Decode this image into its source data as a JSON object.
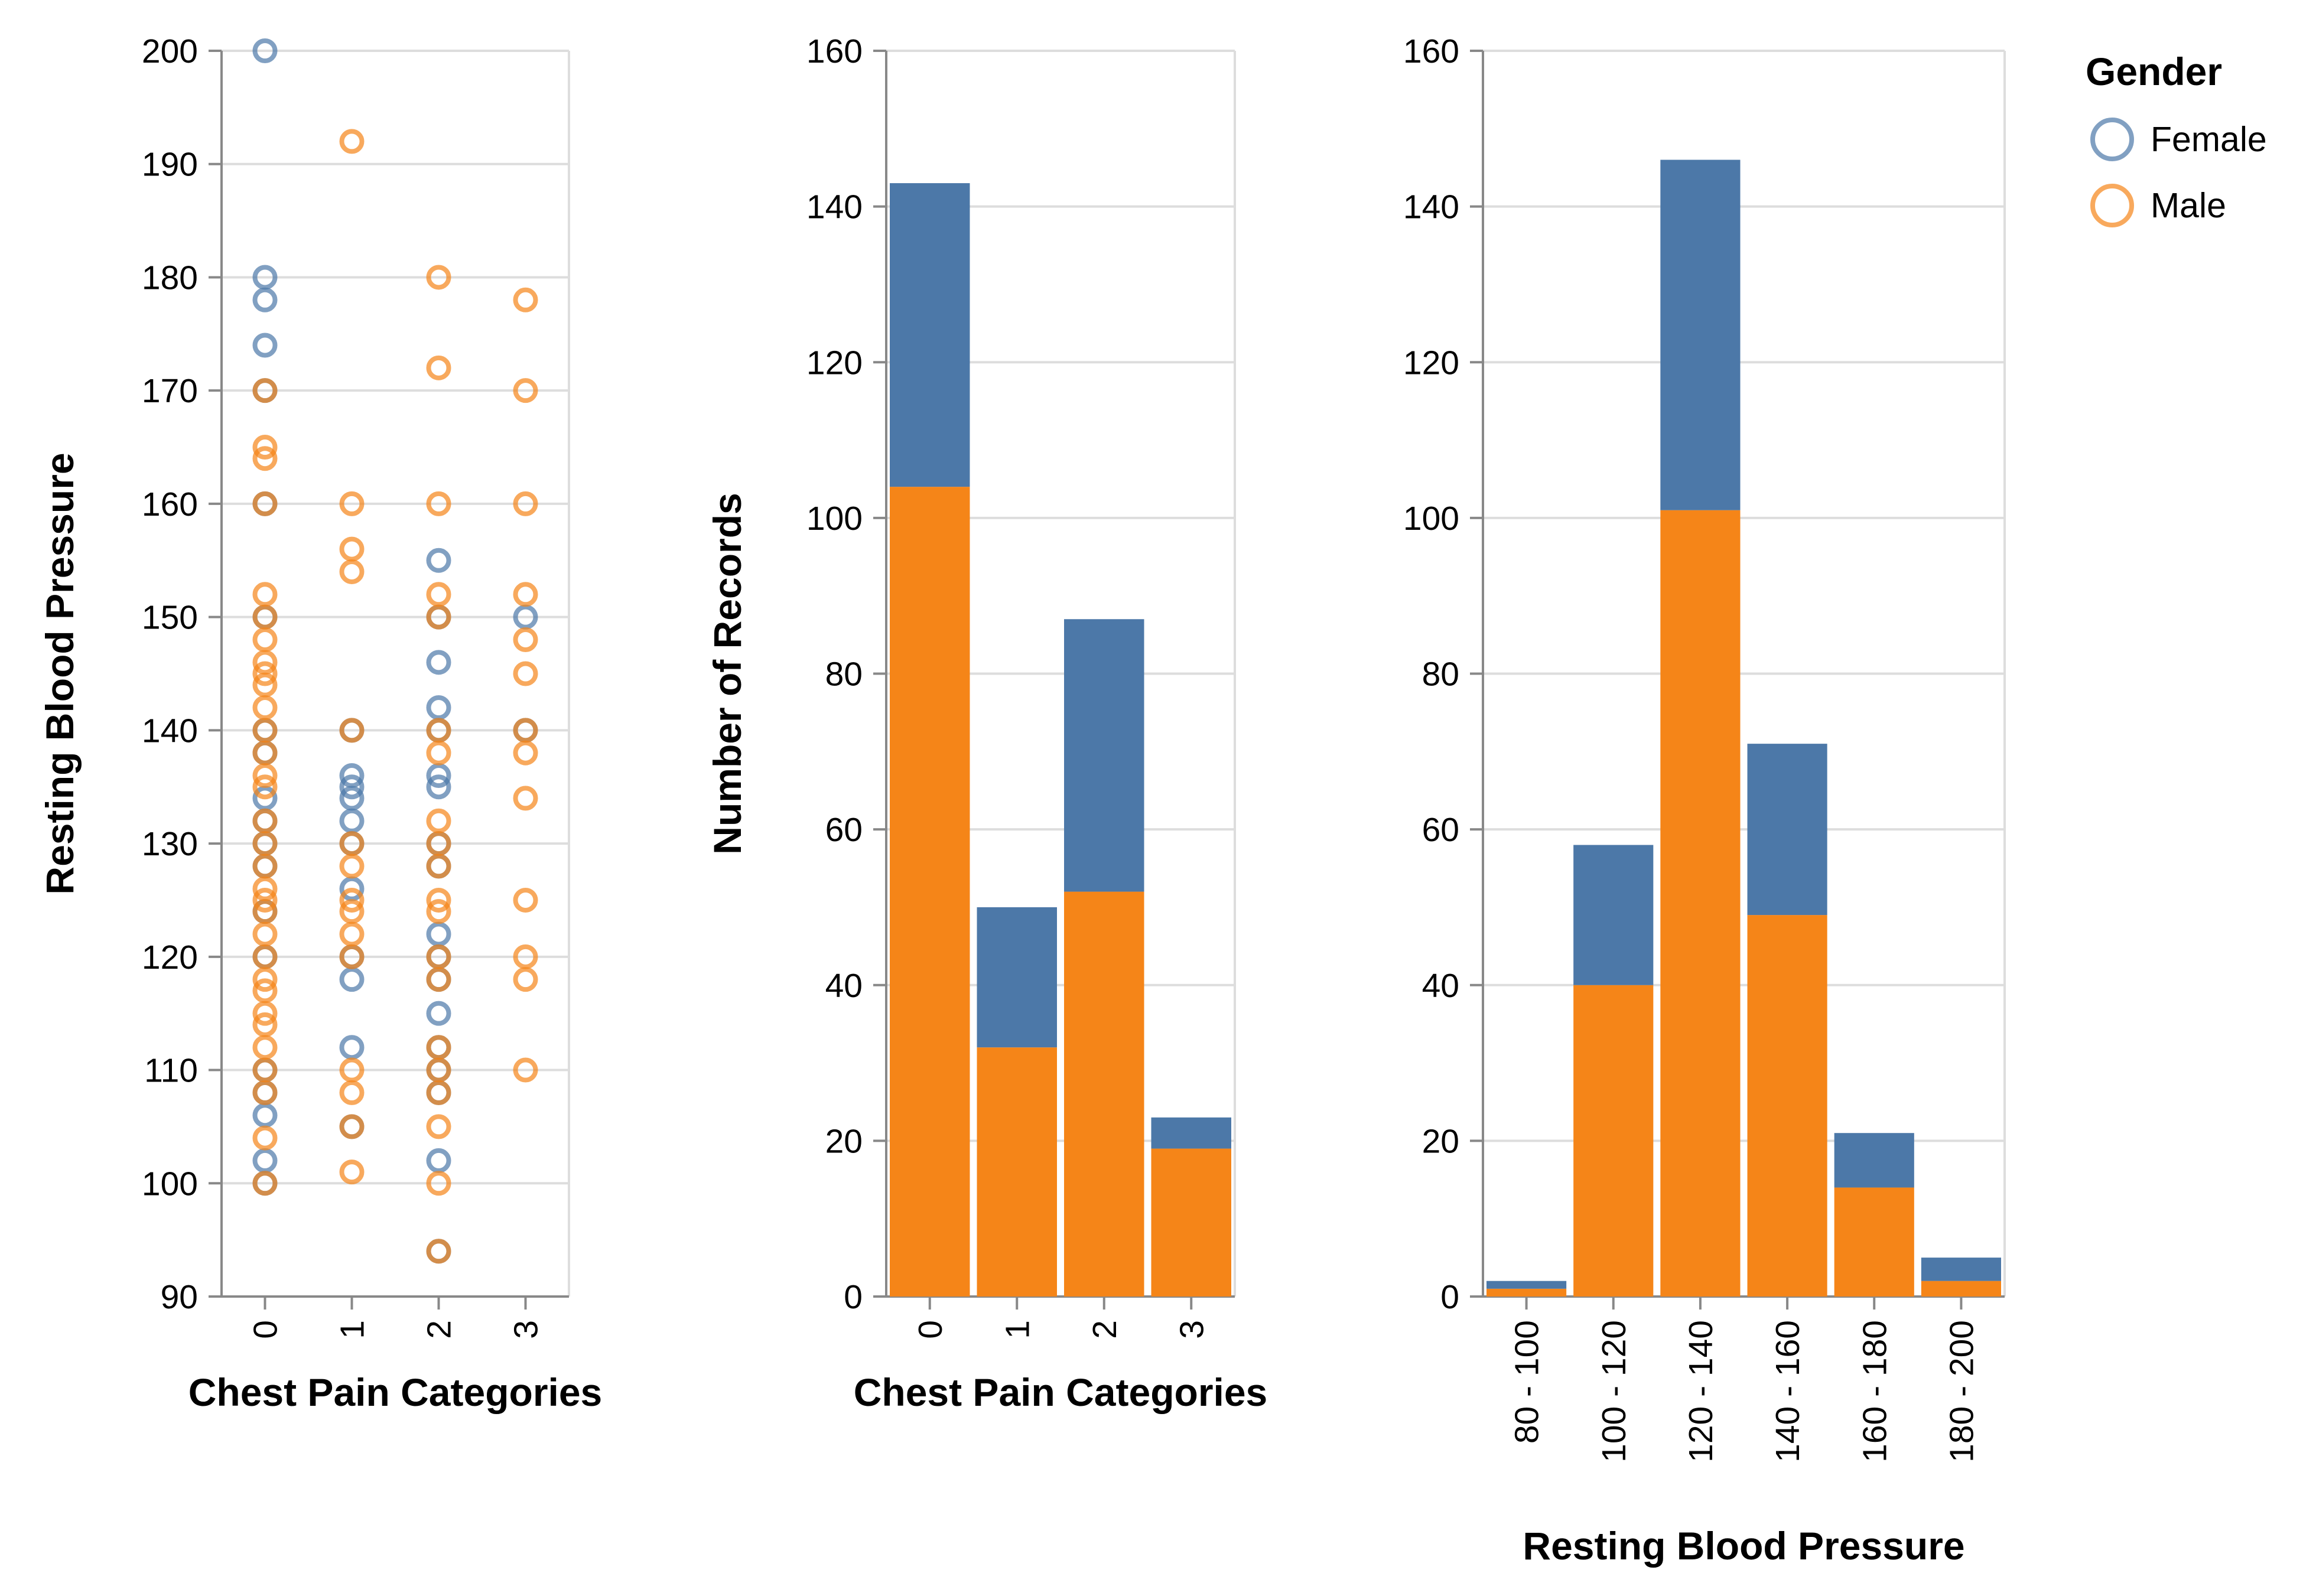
{
  "legend": {
    "title": "Gender",
    "items": [
      {
        "label": "Female",
        "color": "#4c78a8"
      },
      {
        "label": "Male",
        "color": "#f58518"
      }
    ]
  },
  "chart_data": [
    {
      "type": "scatter",
      "xlabel": "Chest Pain Categories",
      "ylabel": "Resting Blood Pressure",
      "categories": [
        "0",
        "1",
        "2",
        "3"
      ],
      "ylim": [
        90,
        200
      ],
      "yticks": [
        90,
        100,
        110,
        120,
        130,
        140,
        150,
        160,
        170,
        180,
        190,
        200
      ],
      "grid": true,
      "series": [
        {
          "name": "Female",
          "color": "#4c78a8",
          "points": [
            [
              0,
              200
            ],
            [
              0,
              180
            ],
            [
              0,
              178
            ],
            [
              0,
              174
            ],
            [
              0,
              170
            ],
            [
              0,
              160
            ],
            [
              0,
              150
            ],
            [
              0,
              140
            ],
            [
              0,
              138
            ],
            [
              0,
              134
            ],
            [
              0,
              132
            ],
            [
              0,
              130
            ],
            [
              0,
              128
            ],
            [
              0,
              124
            ],
            [
              0,
              120
            ],
            [
              0,
              110
            ],
            [
              0,
              108
            ],
            [
              0,
              106
            ],
            [
              0,
              102
            ],
            [
              0,
              100
            ],
            [
              1,
              140
            ],
            [
              1,
              136
            ],
            [
              1,
              135
            ],
            [
              1,
              134
            ],
            [
              1,
              132
            ],
            [
              1,
              130
            ],
            [
              1,
              126
            ],
            [
              1,
              120
            ],
            [
              1,
              118
            ],
            [
              1,
              112
            ],
            [
              1,
              105
            ],
            [
              2,
              155
            ],
            [
              2,
              150
            ],
            [
              2,
              146
            ],
            [
              2,
              142
            ],
            [
              2,
              140
            ],
            [
              2,
              136
            ],
            [
              2,
              135
            ],
            [
              2,
              130
            ],
            [
              2,
              128
            ],
            [
              2,
              122
            ],
            [
              2,
              120
            ],
            [
              2,
              118
            ],
            [
              2,
              115
            ],
            [
              2,
              112
            ],
            [
              2,
              110
            ],
            [
              2,
              108
            ],
            [
              2,
              102
            ],
            [
              2,
              94
            ],
            [
              3,
              150
            ],
            [
              3,
              140
            ]
          ]
        },
        {
          "name": "Male",
          "color": "#f58518",
          "points": [
            [
              0,
              170
            ],
            [
              0,
              165
            ],
            [
              0,
              164
            ],
            [
              0,
              160
            ],
            [
              0,
              152
            ],
            [
              0,
              150
            ],
            [
              0,
              148
            ],
            [
              0,
              146
            ],
            [
              0,
              145
            ],
            [
              0,
              144
            ],
            [
              0,
              142
            ],
            [
              0,
              140
            ],
            [
              0,
              138
            ],
            [
              0,
              136
            ],
            [
              0,
              135
            ],
            [
              0,
              132
            ],
            [
              0,
              130
            ],
            [
              0,
              128
            ],
            [
              0,
              126
            ],
            [
              0,
              125
            ],
            [
              0,
              124
            ],
            [
              0,
              122
            ],
            [
              0,
              120
            ],
            [
              0,
              118
            ],
            [
              0,
              117
            ],
            [
              0,
              115
            ],
            [
              0,
              114
            ],
            [
              0,
              112
            ],
            [
              0,
              110
            ],
            [
              0,
              108
            ],
            [
              0,
              104
            ],
            [
              0,
              100
            ],
            [
              1,
              192
            ],
            [
              1,
              160
            ],
            [
              1,
              156
            ],
            [
              1,
              154
            ],
            [
              1,
              140
            ],
            [
              1,
              130
            ],
            [
              1,
              128
            ],
            [
              1,
              125
            ],
            [
              1,
              124
            ],
            [
              1,
              122
            ],
            [
              1,
              120
            ],
            [
              1,
              110
            ],
            [
              1,
              108
            ],
            [
              1,
              105
            ],
            [
              1,
              101
            ],
            [
              2,
              180
            ],
            [
              2,
              172
            ],
            [
              2,
              160
            ],
            [
              2,
              152
            ],
            [
              2,
              150
            ],
            [
              2,
              140
            ],
            [
              2,
              138
            ],
            [
              2,
              132
            ],
            [
              2,
              130
            ],
            [
              2,
              128
            ],
            [
              2,
              125
            ],
            [
              2,
              124
            ],
            [
              2,
              120
            ],
            [
              2,
              118
            ],
            [
              2,
              112
            ],
            [
              2,
              110
            ],
            [
              2,
              108
            ],
            [
              2,
              105
            ],
            [
              2,
              100
            ],
            [
              2,
              94
            ],
            [
              3,
              178
            ],
            [
              3,
              170
            ],
            [
              3,
              160
            ],
            [
              3,
              152
            ],
            [
              3,
              148
            ],
            [
              3,
              145
            ],
            [
              3,
              140
            ],
            [
              3,
              138
            ],
            [
              3,
              134
            ],
            [
              3,
              125
            ],
            [
              3,
              120
            ],
            [
              3,
              118
            ],
            [
              3,
              110
            ]
          ]
        }
      ]
    },
    {
      "type": "bar",
      "stacked": true,
      "xlabel": "Chest Pain Categories",
      "ylabel": "Number of Records",
      "categories": [
        "0",
        "1",
        "2",
        "3"
      ],
      "ylim": [
        0,
        160
      ],
      "yticks": [
        0,
        20,
        40,
        60,
        80,
        100,
        120,
        140,
        160
      ],
      "grid": true,
      "series": [
        {
          "name": "Male",
          "color": "#f58518",
          "values": [
            104,
            32,
            52,
            19
          ]
        },
        {
          "name": "Female",
          "color": "#4c78a8",
          "values": [
            39,
            18,
            35,
            4
          ]
        }
      ]
    },
    {
      "type": "bar",
      "stacked": true,
      "xlabel": "Resting Blood Pressure",
      "ylabel": "",
      "categories": [
        "80 - 100",
        "100 - 120",
        "120 - 140",
        "140 - 160",
        "160 - 180",
        "180 - 200"
      ],
      "ylim": [
        0,
        160
      ],
      "yticks": [
        0,
        20,
        40,
        60,
        80,
        100,
        120,
        140,
        160
      ],
      "grid": true,
      "series": [
        {
          "name": "Male",
          "color": "#f58518",
          "values": [
            1,
            40,
            101,
            49,
            14,
            2
          ]
        },
        {
          "name": "Female",
          "color": "#4c78a8",
          "values": [
            1,
            18,
            45,
            22,
            7,
            3
          ]
        }
      ]
    }
  ]
}
